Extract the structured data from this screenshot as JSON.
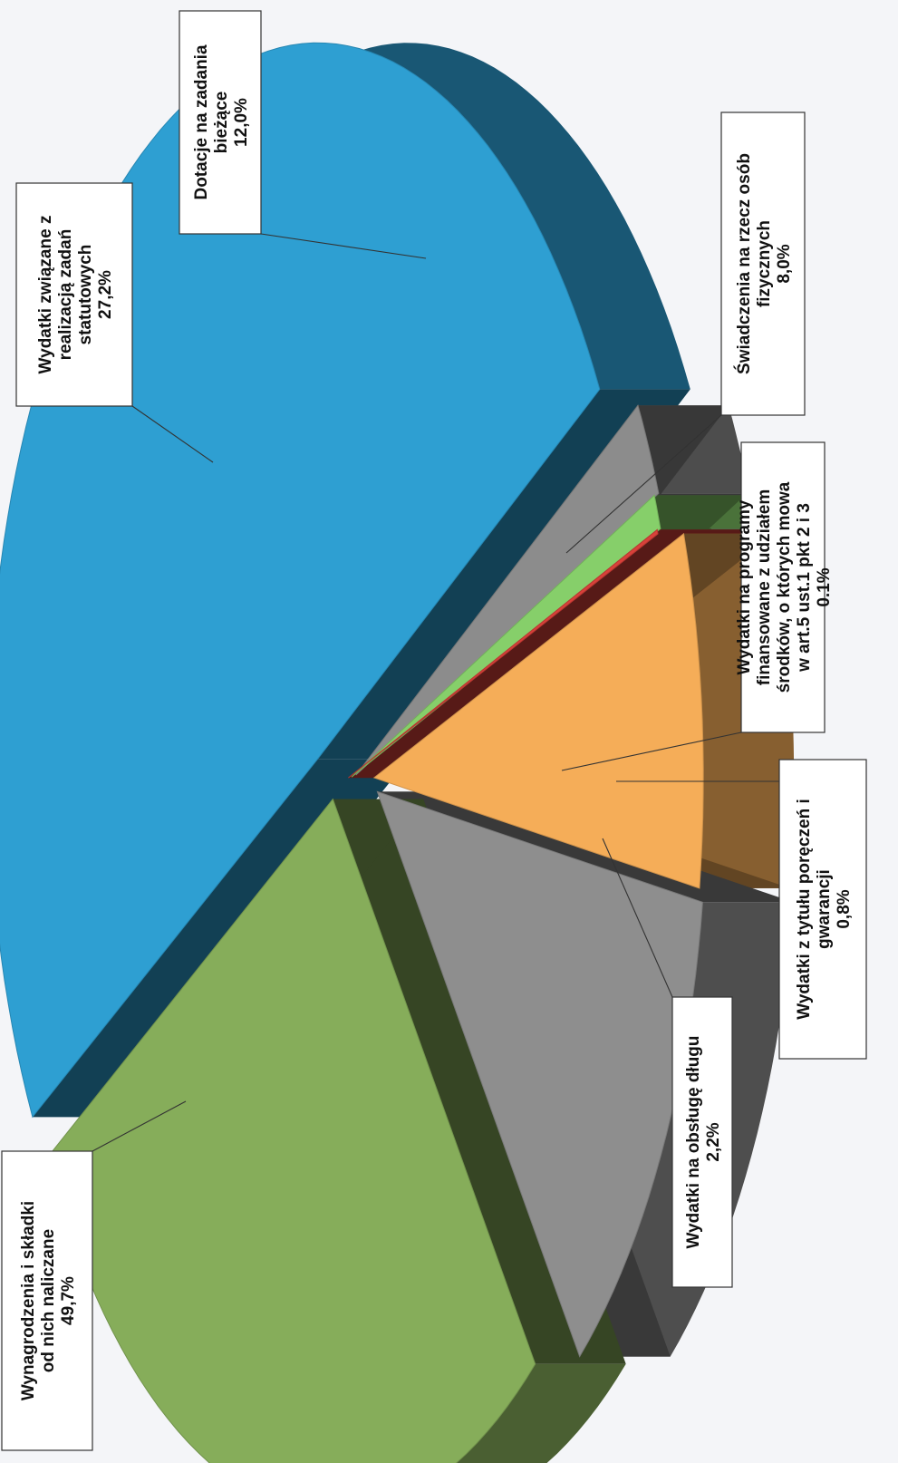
{
  "chart_data": {
    "type": "pie",
    "title": "",
    "legend": "none",
    "slices": [
      {
        "label": "Wynagrodzenia i składki od nich naliczane",
        "value": 49.7,
        "value_text": "49,7%",
        "color": "#2e9fd2"
      },
      {
        "label": "Wydatki na obsługę długu",
        "value": 2.2,
        "value_text": "2,2%",
        "color": "#8c8c8c"
      },
      {
        "label": "Wydatki z tytułu poręczeń i gwarancji",
        "value": 0.8,
        "value_text": "0,8%",
        "color": "#86cf6a"
      },
      {
        "label": "Wydatki na programy finansowane z udziałem środków, o których mowa w art.5 ust.1 pkt 2 i 3",
        "value": 0.1,
        "value_text": "0.1%",
        "color": "#d9413a"
      },
      {
        "label": "Świadczenia na rzecz osób fizycznych",
        "value": 8.0,
        "value_text": "8,0%",
        "color": "#f5ad58"
      },
      {
        "label": "Dotacje na zadania bieżące",
        "value": 12.0,
        "value_text": "12,0%",
        "color": "#8e8e8e"
      },
      {
        "label": "Wydatki związane z realizacją zadań statutowych",
        "value": 27.2,
        "value_text": "27,2%",
        "color": "#86ad5a"
      }
    ],
    "label_lines": [
      [
        "Wynagrodzenia i składki",
        "od nich naliczane"
      ],
      [
        "Wydatki na obsługę długu"
      ],
      [
        "Wydatki z tytułu poręczeń i",
        "gwarancji"
      ],
      [
        "Wydatki na programy",
        "finansowane z udziałem",
        "środków, o których mowa",
        "w art.5 ust.1 pkt 2 i 3"
      ],
      [
        "Świadczenia na rzecz osób",
        "fizycznych"
      ],
      [
        "Dotacje na zadania",
        "bieżące"
      ],
      [
        "Wydatki związane z",
        "realizacją zadań",
        "statutowych"
      ]
    ]
  }
}
